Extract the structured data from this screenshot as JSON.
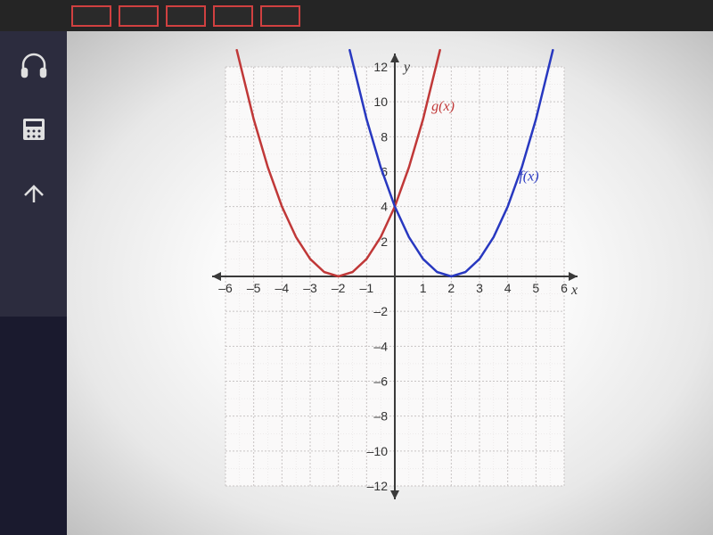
{
  "chart": {
    "type": "line",
    "background_color": "#ffffff",
    "grid_color": "#c8c4c4",
    "minor_grid_color": "#e0dddd",
    "axis_color": "#3a3a3a",
    "x_axis": {
      "label": "x",
      "min": -6,
      "max": 6,
      "ticks": [
        -6,
        -5,
        -4,
        -3,
        -2,
        -1,
        1,
        2,
        3,
        4,
        5,
        6
      ]
    },
    "y_axis": {
      "label": "y",
      "min": -12,
      "max": 12,
      "ticks": [
        -12,
        -10,
        -8,
        -6,
        -4,
        -2,
        2,
        4,
        6,
        8,
        10,
        12
      ]
    },
    "curves": [
      {
        "name": "g(x)",
        "label": "g(x)",
        "color": "#c03838",
        "width": 2.5,
        "vertex": [
          -2,
          0
        ],
        "formula": "(x+2)^2",
        "label_pos": [
          1.3,
          9.5
        ],
        "points": [
          [
            -5.6,
            12.96
          ],
          [
            -5,
            9
          ],
          [
            -4.5,
            6.25
          ],
          [
            -4,
            4
          ],
          [
            -3.5,
            2.25
          ],
          [
            -3,
            1
          ],
          [
            -2.5,
            0.25
          ],
          [
            -2,
            0
          ],
          [
            -1.5,
            0.25
          ],
          [
            -1,
            1
          ],
          [
            -0.5,
            2.25
          ],
          [
            0,
            4
          ],
          [
            0.5,
            6.25
          ],
          [
            1,
            9
          ],
          [
            1.6,
            12.96
          ]
        ]
      },
      {
        "name": "f(x)",
        "label": "f(x)",
        "color": "#2838c0",
        "width": 2.5,
        "vertex": [
          2,
          0
        ],
        "formula": "(x-2)^2",
        "label_pos": [
          4.4,
          5.5
        ],
        "points": [
          [
            -1.6,
            12.96
          ],
          [
            -1,
            9
          ],
          [
            -0.5,
            6.25
          ],
          [
            0,
            4
          ],
          [
            0.5,
            2.25
          ],
          [
            1,
            1
          ],
          [
            1.5,
            0.25
          ],
          [
            2,
            0
          ],
          [
            2.5,
            0.25
          ],
          [
            3,
            1
          ],
          [
            3.5,
            2.25
          ],
          [
            4,
            4
          ],
          [
            4.5,
            6.25
          ],
          [
            5,
            9
          ],
          [
            5.6,
            12.96
          ]
        ]
      }
    ]
  },
  "sidebar": {
    "icons": [
      "headphones",
      "calculator",
      "up-arrow"
    ]
  }
}
